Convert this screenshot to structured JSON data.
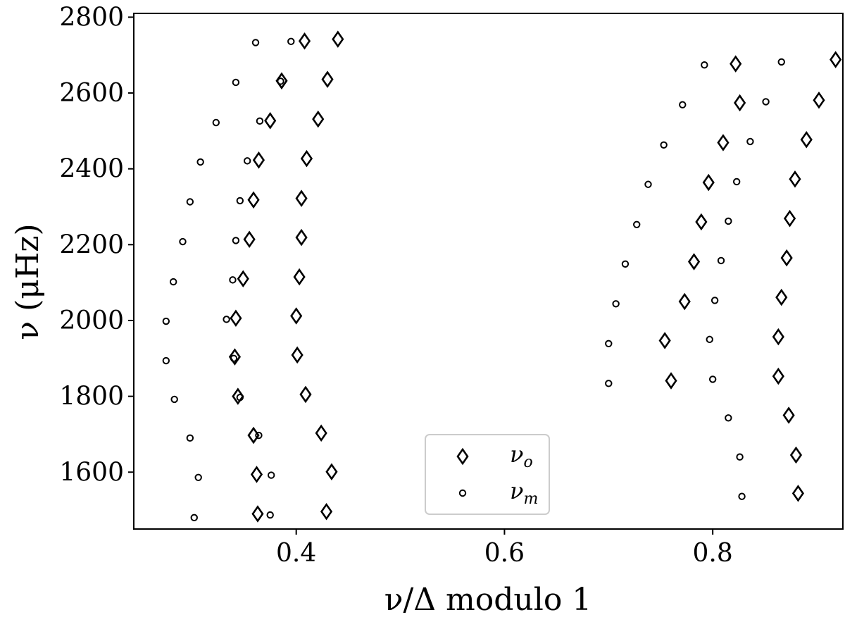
{
  "chart_data": {
    "type": "scatter",
    "xlabel": "ν/Δ modulo 1",
    "ylabel": "ν (μHz)",
    "xlim": [
      0.244,
      0.925
    ],
    "ylim": [
      1450,
      2810
    ],
    "xticks": [
      "0.4",
      "0.6",
      "0.8"
    ],
    "yticks": [
      "1600",
      "1800",
      "2000",
      "2200",
      "2400",
      "2600",
      "2800"
    ],
    "grid": false,
    "legend_position": "bottom-center",
    "legend": [
      {
        "symbol": "ν",
        "sub": "o",
        "marker": "diamond"
      },
      {
        "symbol": "ν",
        "sub": "m",
        "marker": "circle"
      }
    ],
    "series": [
      {
        "name": "νo",
        "marker": "diamond",
        "points": [
          [
            0.363,
            1490
          ],
          [
            0.429,
            1496
          ],
          [
            0.362,
            1594
          ],
          [
            0.434,
            1601
          ],
          [
            0.359,
            1697
          ],
          [
            0.424,
            1703
          ],
          [
            0.344,
            1800
          ],
          [
            0.409,
            1805
          ],
          [
            0.341,
            1904
          ],
          [
            0.401,
            1909
          ],
          [
            0.342,
            2006
          ],
          [
            0.4,
            2012
          ],
          [
            0.349,
            2110
          ],
          [
            0.403,
            2115
          ],
          [
            0.355,
            2214
          ],
          [
            0.405,
            2219
          ],
          [
            0.359,
            2318
          ],
          [
            0.405,
            2322
          ],
          [
            0.364,
            2423
          ],
          [
            0.41,
            2427
          ],
          [
            0.375,
            2527
          ],
          [
            0.421,
            2531
          ],
          [
            0.386,
            2632
          ],
          [
            0.43,
            2636
          ],
          [
            0.408,
            2737
          ],
          [
            0.44,
            2742
          ],
          [
            0.882,
            1544
          ],
          [
            0.88,
            1645
          ],
          [
            0.873,
            1750
          ],
          [
            0.76,
            1841
          ],
          [
            0.863,
            1853
          ],
          [
            0.754,
            1947
          ],
          [
            0.863,
            1957
          ],
          [
            0.773,
            2050
          ],
          [
            0.866,
            2061
          ],
          [
            0.782,
            2155
          ],
          [
            0.871,
            2165
          ],
          [
            0.789,
            2260
          ],
          [
            0.874,
            2269
          ],
          [
            0.796,
            2364
          ],
          [
            0.879,
            2373
          ],
          [
            0.81,
            2469
          ],
          [
            0.89,
            2477
          ],
          [
            0.826,
            2574
          ],
          [
            0.902,
            2581
          ],
          [
            0.822,
            2677
          ],
          [
            0.918,
            2688
          ]
        ]
      },
      {
        "name": "νm",
        "marker": "circle",
        "points": [
          [
            0.302,
            1480
          ],
          [
            0.375,
            1487
          ],
          [
            0.306,
            1586
          ],
          [
            0.376,
            1592
          ],
          [
            0.298,
            1690
          ],
          [
            0.364,
            1697
          ],
          [
            0.283,
            1792
          ],
          [
            0.346,
            1797
          ],
          [
            0.275,
            1894
          ],
          [
            0.34,
            1900
          ],
          [
            0.275,
            1998
          ],
          [
            0.333,
            2003
          ],
          [
            0.282,
            2102
          ],
          [
            0.339,
            2107
          ],
          [
            0.291,
            2208
          ],
          [
            0.342,
            2211
          ],
          [
            0.298,
            2313
          ],
          [
            0.346,
            2316
          ],
          [
            0.308,
            2418
          ],
          [
            0.353,
            2421
          ],
          [
            0.323,
            2522
          ],
          [
            0.365,
            2526
          ],
          [
            0.342,
            2628
          ],
          [
            0.385,
            2631
          ],
          [
            0.361,
            2733
          ],
          [
            0.395,
            2736
          ],
          [
            0.828,
            1536
          ],
          [
            0.826,
            1640
          ],
          [
            0.815,
            1743
          ],
          [
            0.7,
            1834
          ],
          [
            0.8,
            1845
          ],
          [
            0.7,
            1939
          ],
          [
            0.797,
            1950
          ],
          [
            0.707,
            2044
          ],
          [
            0.802,
            2053
          ],
          [
            0.716,
            2149
          ],
          [
            0.808,
            2158
          ],
          [
            0.727,
            2253
          ],
          [
            0.815,
            2262
          ],
          [
            0.738,
            2359
          ],
          [
            0.823,
            2366
          ],
          [
            0.753,
            2463
          ],
          [
            0.836,
            2472
          ],
          [
            0.771,
            2569
          ],
          [
            0.851,
            2577
          ],
          [
            0.792,
            2674
          ],
          [
            0.866,
            2682
          ]
        ]
      }
    ]
  }
}
